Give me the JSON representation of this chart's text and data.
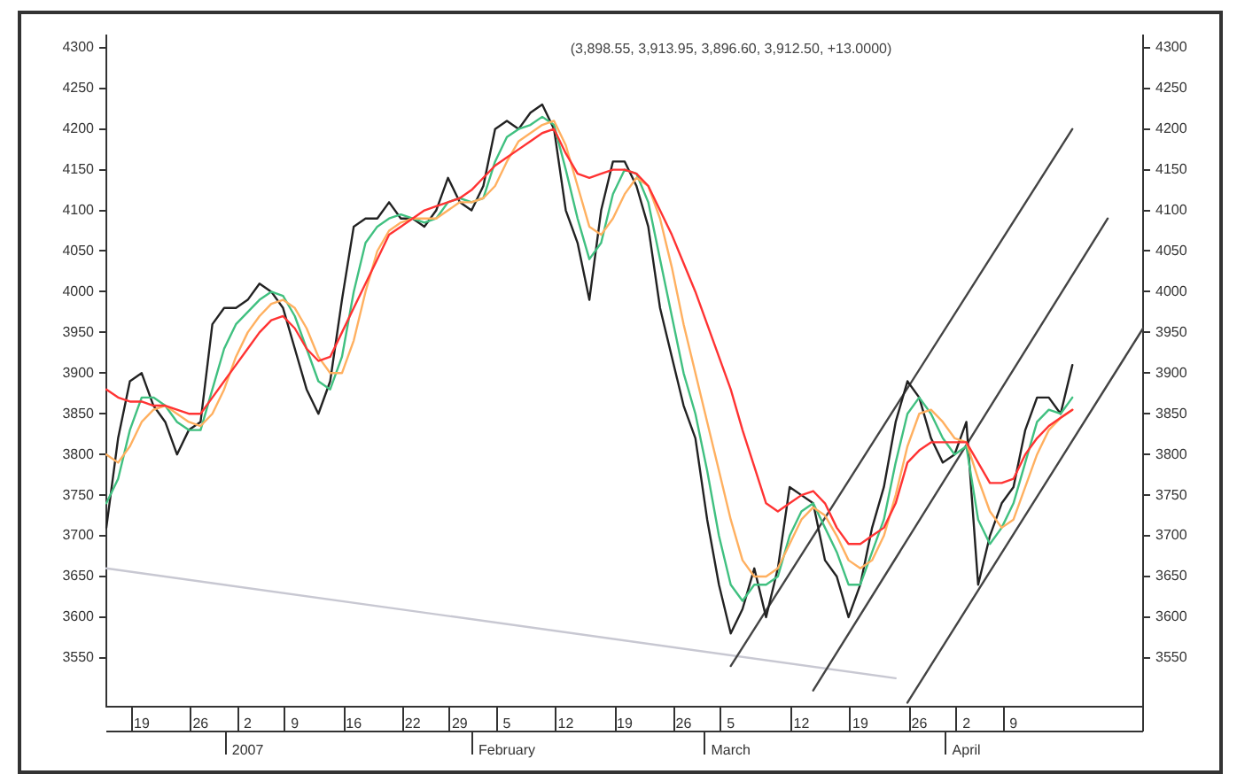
{
  "chart_data": {
    "type": "line",
    "title": "(3,898.55, 3,913.95, 3,896.60, 3,912.50, +13.0000)",
    "categories": [
      null,
      null,
      null,
      "19",
      null,
      null,
      null,
      null,
      "26",
      null,
      null,
      null,
      "2\n2007",
      null,
      null,
      null,
      "9",
      null,
      null,
      null,
      null,
      "16",
      null,
      null,
      null,
      null,
      "22",
      null,
      null,
      null,
      "29",
      null,
      null,
      null,
      "5\nFebruary",
      null,
      null,
      null,
      null,
      "12",
      null,
      null,
      null,
      null,
      "19",
      null,
      null,
      null,
      null,
      "26",
      null,
      null,
      null,
      "5\nMarch",
      null,
      null,
      null,
      null,
      null,
      "12",
      null,
      null,
      null,
      null,
      "19",
      null,
      null,
      null,
      null,
      "26",
      null,
      null,
      null,
      "2\nApril",
      null,
      null,
      null,
      "9",
      null,
      null,
      null,
      null,
      null,
      null,
      null,
      null,
      null,
      null,
      null
    ],
    "series": [
      {
        "color": "#c8c8d2",
        "values": [
          3660,
          null,
          null,
          null,
          null,
          null,
          null,
          null,
          null,
          null,
          null,
          null,
          null,
          null,
          null,
          null,
          null,
          null,
          null,
          null,
          null,
          null,
          null,
          null,
          null,
          null,
          null,
          null,
          null,
          null,
          null,
          null,
          null,
          null,
          null,
          null,
          null,
          null,
          null,
          null,
          null,
          null,
          null,
          null,
          null,
          null,
          null,
          null,
          null,
          null,
          null,
          null,
          null,
          null,
          null,
          null,
          null,
          null,
          null,
          null,
          null,
          null,
          null,
          null,
          null,
          null,
          null,
          3525,
          null,
          null,
          null,
          null,
          null,
          null,
          null,
          null,
          null,
          null,
          null,
          null,
          null,
          null,
          null,
          null,
          null,
          null,
          null,
          null,
          null
        ]
      },
      {
        "color": "#444444",
        "values": [
          null,
          null,
          null,
          null,
          null,
          null,
          null,
          null,
          null,
          null,
          null,
          null,
          null,
          null,
          null,
          null,
          null,
          null,
          null,
          null,
          null,
          null,
          null,
          null,
          null,
          null,
          null,
          null,
          null,
          null,
          null,
          null,
          null,
          null,
          null,
          null,
          null,
          null,
          null,
          null,
          null,
          null,
          null,
          null,
          null,
          null,
          null,
          null,
          null,
          null,
          null,
          null,
          null,
          3540,
          null,
          null,
          null,
          null,
          null,
          null,
          null,
          null,
          null,
          null,
          null,
          null,
          null,
          null,
          null,
          null,
          null,
          null,
          null,
          null,
          null,
          null,
          null,
          null,
          null,
          null,
          null,
          null,
          4200,
          null,
          null,
          null,
          null,
          null,
          null
        ]
      },
      {
        "color": "#444444",
        "values": [
          null,
          null,
          null,
          null,
          null,
          null,
          null,
          null,
          null,
          null,
          null,
          null,
          null,
          null,
          null,
          null,
          null,
          null,
          null,
          null,
          null,
          null,
          null,
          null,
          null,
          null,
          null,
          null,
          null,
          null,
          null,
          null,
          null,
          null,
          null,
          null,
          null,
          null,
          null,
          null,
          null,
          null,
          null,
          null,
          null,
          null,
          null,
          null,
          null,
          null,
          null,
          null,
          null,
          null,
          null,
          null,
          null,
          null,
          null,
          null,
          3510,
          null,
          null,
          null,
          null,
          null,
          null,
          null,
          null,
          null,
          null,
          null,
          null,
          null,
          null,
          null,
          null,
          null,
          null,
          null,
          null,
          null,
          null,
          null,
          null,
          4090,
          null,
          null,
          null
        ]
      },
      {
        "color": "#444444",
        "values": [
          null,
          null,
          null,
          null,
          null,
          null,
          null,
          null,
          null,
          null,
          null,
          null,
          null,
          null,
          null,
          null,
          null,
          null,
          null,
          null,
          null,
          null,
          null,
          null,
          null,
          null,
          null,
          null,
          null,
          null,
          null,
          null,
          null,
          null,
          null,
          null,
          null,
          null,
          null,
          null,
          null,
          null,
          null,
          null,
          null,
          null,
          null,
          null,
          null,
          null,
          null,
          null,
          null,
          null,
          null,
          null,
          null,
          null,
          null,
          null,
          null,
          null,
          null,
          null,
          null,
          null,
          null,
          null,
          3495,
          null,
          null,
          null,
          null,
          null,
          null,
          null,
          null,
          null,
          null,
          null,
          null,
          null,
          null,
          null,
          null,
          null,
          null,
          null,
          3955
        ]
      },
      {
        "color": "#222222",
        "values": [
          3710,
          3820,
          3890,
          3900,
          3860,
          3840,
          3800,
          3830,
          3840,
          3960,
          3980,
          3980,
          3990,
          4010,
          4000,
          3980,
          3930,
          3880,
          3850,
          3890,
          3990,
          4080,
          4090,
          4090,
          4110,
          4090,
          4090,
          4080,
          4100,
          4140,
          4110,
          4100,
          4130,
          4200,
          4210,
          4200,
          4220,
          4230,
          4200,
          4100,
          4060,
          3990,
          4100,
          4160,
          4160,
          4130,
          4080,
          3980,
          3920,
          3860,
          3820,
          3720,
          3640,
          3580,
          3610,
          3660,
          3600,
          3660,
          3760,
          3750,
          3740,
          3670,
          3650,
          3600,
          3640,
          3710,
          3760,
          3840,
          3890,
          3870,
          3820,
          3790,
          3800,
          3840,
          3640,
          3700,
          3740,
          3760,
          3830,
          3870,
          3870,
          3850,
          3910,
          null,
          null,
          null,
          null,
          null,
          null
        ]
      },
      {
        "color": "#40c080",
        "values": [
          3740,
          3770,
          3830,
          3870,
          3870,
          3860,
          3840,
          3830,
          3830,
          3880,
          3930,
          3960,
          3975,
          3990,
          4000,
          3995,
          3970,
          3930,
          3890,
          3880,
          3920,
          4000,
          4060,
          4080,
          4090,
          4095,
          4090,
          4085,
          4090,
          4110,
          4115,
          4110,
          4115,
          4160,
          4190,
          4200,
          4205,
          4215,
          4205,
          4150,
          4090,
          4040,
          4060,
          4120,
          4150,
          4145,
          4110,
          4040,
          3970,
          3900,
          3850,
          3780,
          3700,
          3640,
          3620,
          3640,
          3640,
          3650,
          3700,
          3730,
          3740,
          3710,
          3680,
          3640,
          3640,
          3680,
          3720,
          3790,
          3850,
          3870,
          3850,
          3820,
          3800,
          3810,
          3720,
          3690,
          3710,
          3740,
          3790,
          3840,
          3855,
          3850,
          3870,
          null,
          null,
          null,
          null,
          null,
          null
        ]
      },
      {
        "color": "#ffb060",
        "values": [
          3800,
          3790,
          3810,
          3840,
          3855,
          3860,
          3850,
          3840,
          3835,
          3850,
          3880,
          3920,
          3950,
          3970,
          3985,
          3990,
          3980,
          3955,
          3920,
          3900,
          3900,
          3940,
          4000,
          4050,
          4075,
          4085,
          4090,
          4090,
          4090,
          4100,
          4110,
          4110,
          4115,
          4130,
          4160,
          4185,
          4195,
          4205,
          4210,
          4180,
          4130,
          4080,
          4070,
          4090,
          4120,
          4140,
          4130,
          4090,
          4030,
          3960,
          3900,
          3840,
          3780,
          3720,
          3670,
          3650,
          3650,
          3660,
          3690,
          3720,
          3735,
          3725,
          3700,
          3670,
          3660,
          3670,
          3700,
          3750,
          3810,
          3850,
          3855,
          3840,
          3820,
          3815,
          3770,
          3730,
          3710,
          3720,
          3760,
          3800,
          3830,
          3845,
          3855,
          null,
          null,
          null,
          null,
          null,
          null
        ]
      },
      {
        "color": "#ff3333",
        "values": [
          3880,
          3870,
          3865,
          3865,
          3860,
          3860,
          3855,
          3850,
          3850,
          3870,
          3890,
          3910,
          3930,
          3950,
          3965,
          3970,
          3955,
          3930,
          3915,
          3920,
          3950,
          3980,
          4010,
          4040,
          4070,
          4080,
          4090,
          4100,
          4105,
          4110,
          4115,
          4125,
          4140,
          4155,
          4165,
          4175,
          4185,
          4195,
          4200,
          4170,
          4145,
          4140,
          4145,
          4150,
          4150,
          4145,
          4130,
          4100,
          4070,
          4035,
          4000,
          3960,
          3920,
          3880,
          3830,
          3785,
          3740,
          3730,
          3740,
          3750,
          3755,
          3740,
          3710,
          3690,
          3690,
          3700,
          3710,
          3740,
          3790,
          3805,
          3815,
          3815,
          3815,
          3815,
          3790,
          3765,
          3765,
          3770,
          3800,
          3820,
          3835,
          3845,
          3855,
          null,
          null,
          null,
          null,
          null,
          null
        ]
      }
    ],
    "ylim": [
      3490,
      4315
    ],
    "yticks": [
      3550,
      3600,
      3650,
      3700,
      3750,
      3800,
      3850,
      3900,
      3950,
      4000,
      4050,
      4100,
      4150,
      4200,
      4250,
      4300
    ],
    "y2lim": [
      3490,
      4315
    ],
    "y2ticks": [
      3550,
      3600,
      3650,
      3700,
      3750,
      3800,
      3850,
      3900,
      3950,
      4000,
      4050,
      4100,
      4150,
      4200,
      4250,
      4300
    ],
    "marker": "none",
    "grid": false,
    "legend": false
  }
}
